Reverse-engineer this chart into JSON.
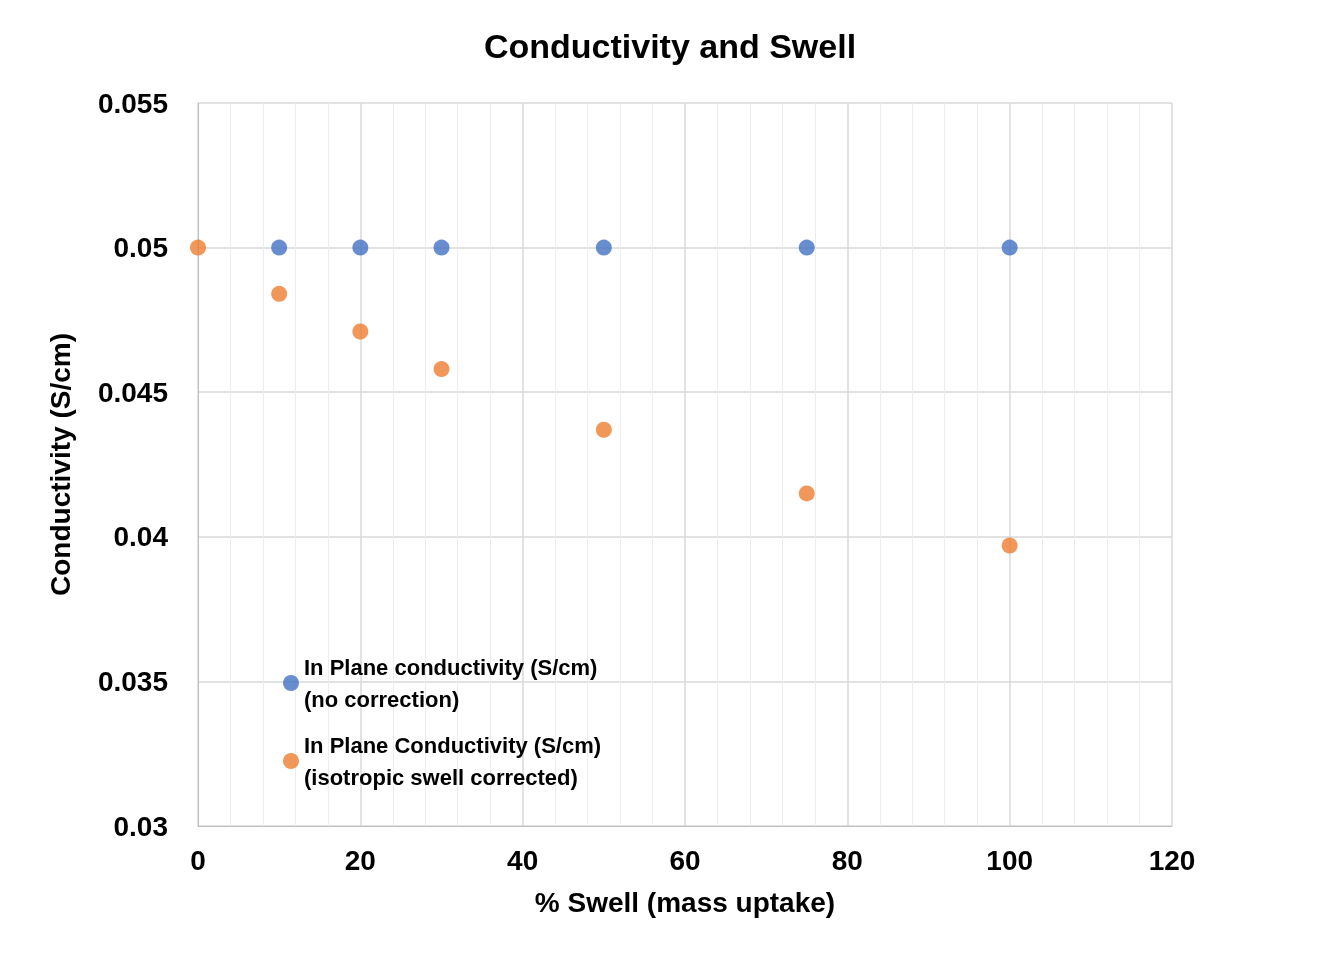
{
  "chart_data": {
    "type": "scatter",
    "title": "Conductivity and Swell",
    "xlabel": "% Swell (mass uptake)",
    "ylabel": "Conductivity (S/cm)",
    "series": [
      {
        "name": "In Plane conductivity (S/cm) (no correction)",
        "color": "#4472c4",
        "x": [
          10,
          20,
          30,
          50,
          75,
          100
        ],
        "values": [
          0.05,
          0.05,
          0.05,
          0.05,
          0.05,
          0.05
        ]
      },
      {
        "name": "In Plane Conductivity (S/cm) (isotropic swell corrected)",
        "color": "#ed7d31",
        "x": [
          0,
          10,
          20,
          30,
          50,
          75,
          100
        ],
        "values": [
          0.05,
          0.0484,
          0.0471,
          0.0458,
          0.0437,
          0.0415,
          0.0397
        ]
      }
    ],
    "xlim": [
      0,
      120
    ],
    "xticks": [
      0,
      20,
      40,
      60,
      80,
      100,
      120
    ],
    "ylim": [
      0.03,
      0.055
    ],
    "yticks": [
      0.03,
      0.035,
      0.04,
      0.045,
      0.05,
      0.055
    ],
    "grid": true,
    "legend": "bottom left",
    "marker": "circle"
  }
}
